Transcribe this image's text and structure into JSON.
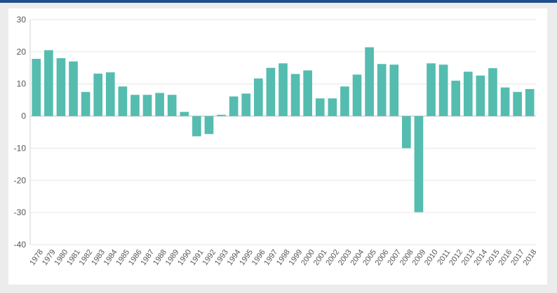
{
  "chart_data": {
    "type": "bar",
    "title": "",
    "xlabel": "",
    "ylabel": "",
    "ylim": [
      -40,
      30
    ],
    "yticks": [
      -40,
      -30,
      -20,
      -10,
      0,
      10,
      20,
      30
    ],
    "grid": true,
    "legend": "none",
    "bar_color": "#55bcb0",
    "categories": [
      "1978",
      "1979",
      "1980",
      "1981",
      "1982",
      "1983",
      "1984",
      "1985",
      "1986",
      "1987",
      "1988",
      "1989",
      "1990",
      "1991",
      "1992",
      "1993",
      "1994",
      "1995",
      "1996",
      "1997",
      "1998",
      "1999",
      "2000",
      "2001",
      "2002",
      "2003",
      "2004",
      "2005",
      "2006",
      "2007",
      "2008",
      "2009",
      "2010",
      "2011",
      "2012",
      "2013",
      "2014",
      "2015",
      "2016",
      "2017",
      "2018"
    ],
    "values": [
      17.8,
      20.5,
      18.0,
      17.0,
      7.5,
      13.2,
      13.6,
      9.2,
      6.6,
      6.6,
      7.2,
      6.6,
      1.3,
      -6.3,
      -5.6,
      0.4,
      6.1,
      7.0,
      11.7,
      15.0,
      16.4,
      13.1,
      14.2,
      5.5,
      5.5,
      9.2,
      12.9,
      21.4,
      16.2,
      16.0,
      -10.0,
      -29.9,
      16.4,
      16.0,
      11.0,
      13.8,
      12.6,
      14.9,
      8.9,
      7.5,
      8.4
    ]
  }
}
